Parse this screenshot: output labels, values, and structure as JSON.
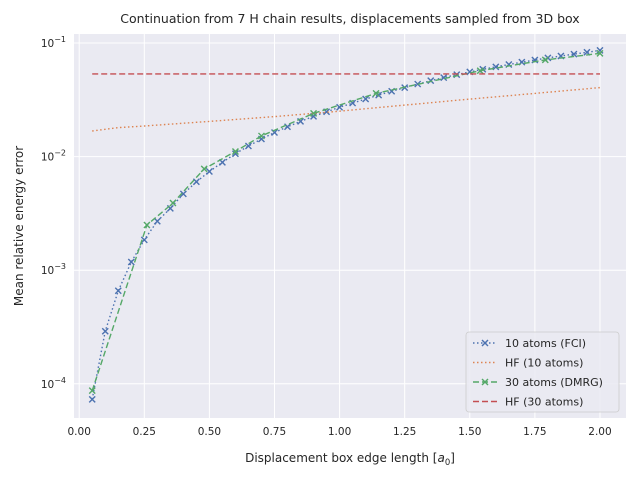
{
  "chart_data": {
    "type": "line",
    "title": "Continuation from 7 H chain results, displacements sampled from 3D box",
    "xlabel": "Displacement box edge length [",
    "xlabel_unit": "a",
    "xlabel_unit_sub": "0",
    "xlabel_close": "]",
    "ylabel": "Mean relative energy error",
    "xlim": [
      -0.02,
      2.1
    ],
    "ylim": [
      5e-05,
      0.12
    ],
    "yscale": "log",
    "grid": true,
    "legend_position": "lower-right",
    "x_ticks": [
      {
        "value": 0.0,
        "label": "0.00"
      },
      {
        "value": 0.25,
        "label": "0.25"
      },
      {
        "value": 0.5,
        "label": "0.50"
      },
      {
        "value": 0.75,
        "label": "0.75"
      },
      {
        "value": 1.0,
        "label": "1.00"
      },
      {
        "value": 1.25,
        "label": "1.25"
      },
      {
        "value": 1.5,
        "label": "1.50"
      },
      {
        "value": 1.75,
        "label": "1.75"
      },
      {
        "value": 2.0,
        "label": "2.00"
      }
    ],
    "y_ticks": [
      {
        "value": 0.0001,
        "base": "10",
        "exp": "−4"
      },
      {
        "value": 0.001,
        "base": "10",
        "exp": "−3"
      },
      {
        "value": 0.01,
        "base": "10",
        "exp": "−2"
      },
      {
        "value": 0.1,
        "base": "10",
        "exp": "−1"
      }
    ],
    "series": [
      {
        "name": "10 atoms (FCI)",
        "color": "#4c72b0",
        "dash": "dotted",
        "marker": "x",
        "x": [
          0.05,
          0.1,
          0.15,
          0.2,
          0.25,
          0.3,
          0.35,
          0.4,
          0.45,
          0.5,
          0.55,
          0.6,
          0.65,
          0.7,
          0.75,
          0.8,
          0.85,
          0.9,
          0.95,
          1.0,
          1.05,
          1.1,
          1.15,
          1.2,
          1.25,
          1.3,
          1.35,
          1.4,
          1.45,
          1.5,
          1.55,
          1.6,
          1.65,
          1.7,
          1.75,
          1.8,
          1.85,
          1.9,
          1.95,
          2.0
        ],
        "y": [
          7.3e-05,
          0.00029,
          0.00066,
          0.00118,
          0.00185,
          0.0027,
          0.0035,
          0.0047,
          0.006,
          0.0074,
          0.0089,
          0.0106,
          0.0124,
          0.0143,
          0.0163,
          0.0183,
          0.0204,
          0.0226,
          0.0248,
          0.0272,
          0.0296,
          0.0321,
          0.0348,
          0.0376,
          0.0405,
          0.0435,
          0.0466,
          0.0496,
          0.0527,
          0.0557,
          0.0587,
          0.0617,
          0.0647,
          0.0678,
          0.0708,
          0.0739,
          0.0768,
          0.0798,
          0.0828,
          0.0862
        ]
      },
      {
        "name": "HF (10 atoms)",
        "color": "#dd8452",
        "dash": "dotted",
        "marker": "none",
        "x": [
          0.05,
          0.1,
          0.15,
          0.2,
          0.25,
          0.5,
          0.75,
          1.0,
          1.25,
          1.5,
          1.75,
          2.0
        ],
        "y": [
          0.0168,
          0.0174,
          0.018,
          0.0183,
          0.0186,
          0.0204,
          0.0225,
          0.0251,
          0.0284,
          0.0321,
          0.036,
          0.0405
        ]
      },
      {
        "name": "30 atoms (DMRG)",
        "color": "#55a868",
        "dash": "dashed",
        "marker": "x",
        "x": [
          0.05,
          0.26,
          0.36,
          0.48,
          0.6,
          0.7,
          0.9,
          1.14,
          1.54,
          1.79,
          2.0
        ],
        "y": [
          8.7e-05,
          0.0025,
          0.0039,
          0.0078,
          0.0111,
          0.0152,
          0.024,
          0.036,
          0.057,
          0.071,
          0.081
        ]
      },
      {
        "name": "HF (30 atoms)",
        "color": "#c44e52",
        "dash": "dashed",
        "marker": "none",
        "x": [
          0.05,
          2.0
        ],
        "y": [
          0.0535,
          0.0535
        ]
      }
    ]
  }
}
